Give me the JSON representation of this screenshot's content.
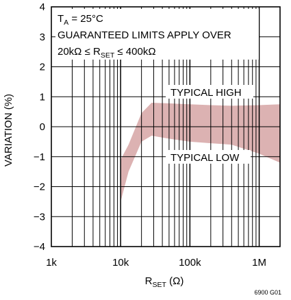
{
  "chart_data": {
    "type": "area",
    "x_scale": "log",
    "xlim": [
      1000,
      2000000
    ],
    "ylim": [
      -4,
      4
    ],
    "grid": true,
    "x_ticks": [
      {
        "label": "1k",
        "value": 1000
      },
      {
        "label": "10k",
        "value": 10000
      },
      {
        "label": "100k",
        "value": 100000
      },
      {
        "label": "1M",
        "value": 1000000
      }
    ],
    "y_ticks": [
      {
        "label": "4",
        "value": 4
      },
      {
        "label": "3",
        "value": 3
      },
      {
        "label": "2",
        "value": 2
      },
      {
        "label": "1",
        "value": 1
      },
      {
        "label": "0",
        "value": 0
      },
      {
        "label": "−1",
        "value": -1
      },
      {
        "label": "−2",
        "value": -2
      },
      {
        "label": "−3",
        "value": -3
      },
      {
        "label": "−4",
        "value": -4
      }
    ],
    "ylabel": "VARIATION (%)",
    "xlabel": {
      "main": "R",
      "sub": "SET",
      "tail": " (Ω)"
    },
    "band": {
      "fill": "#dcb2b2",
      "x": [
        10000,
        13000,
        20000,
        28000,
        50000,
        100000,
        200000,
        400000,
        1000000,
        2000000
      ],
      "high": [
        -1.1,
        -0.6,
        0.45,
        0.8,
        0.78,
        0.75,
        0.72,
        0.7,
        0.72,
        0.75
      ],
      "low": [
        -2.5,
        -1.5,
        -0.5,
        -0.3,
        -0.4,
        -0.5,
        -0.55,
        -0.6,
        -0.9,
        -1.2
      ]
    },
    "annotations": {
      "typical_high": "TYPICAL HIGH",
      "typical_low": "TYPICAL LOW",
      "condition_line1": {
        "main": "T",
        "sub": "A",
        "tail": " = 25°C"
      },
      "condition_line2": "GUARANTEED LIMITS APPLY OVER",
      "condition_line3": {
        "pre": "20kΩ ≤ R",
        "sub": "SET",
        "tail": " ≤ 400kΩ"
      }
    },
    "figure_id": "6900 G01"
  }
}
